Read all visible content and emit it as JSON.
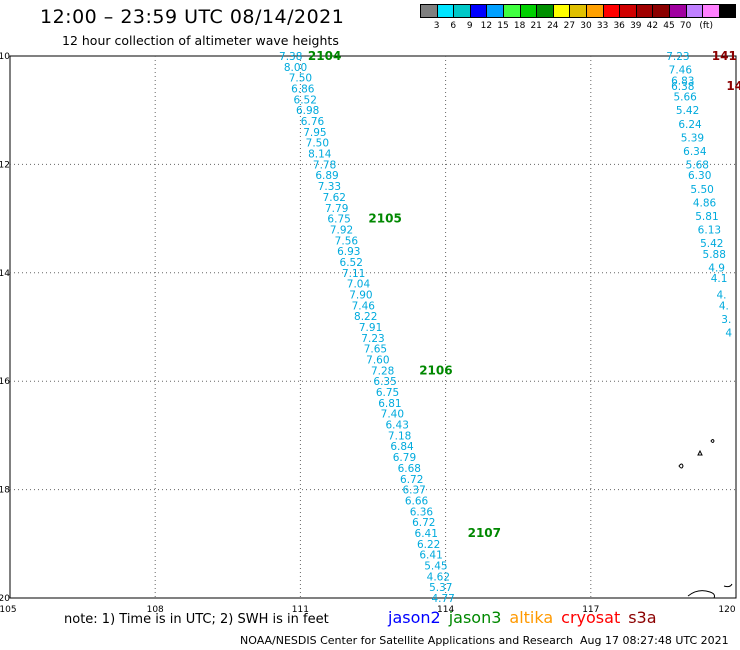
{
  "title": "12:00 – 23:59 UTC 08/14/2021",
  "subtitle": "12 hour collection of altimeter wave heights",
  "legend": {
    "colors": [
      "#7f7f7f",
      "#00e5ff",
      "#00c8c8",
      "#0000ff",
      "#00a0ff",
      "#40ff40",
      "#00d000",
      "#009000",
      "#ffff00",
      "#e0c000",
      "#ffa000",
      "#ff0000",
      "#d00000",
      "#a00000",
      "#8b0000",
      "#a000a0",
      "#c080ff",
      "#ff80ff",
      "#000000"
    ],
    "labels": [
      "3",
      "6",
      "9",
      "12",
      "15",
      "18",
      "21",
      "24",
      "27",
      "30",
      "33",
      "36",
      "39",
      "42",
      "45",
      "70",
      "(ft)"
    ]
  },
  "map": {
    "lon_range": [
      105,
      120
    ],
    "lat_range": [
      -20,
      -10
    ],
    "lon_ticks": [
      "105",
      "108",
      "111",
      "114",
      "117",
      "120"
    ],
    "lat_ticks": [
      "-10",
      "-12",
      "-14",
      "-16",
      "-18",
      "-20"
    ],
    "track_color": "#00aadd",
    "time_color": "#008800",
    "other_time_color": "#8b0000"
  },
  "track_main": [
    {
      "lon": 110.8,
      "lat": -10.0,
      "v": "7.38"
    },
    {
      "lon": 110.9,
      "lat": -10.2,
      "v": "8.00"
    },
    {
      "lon": 111.0,
      "lat": -10.4,
      "v": "7.50"
    },
    {
      "lon": 111.05,
      "lat": -10.6,
      "v": "6.86"
    },
    {
      "lon": 111.1,
      "lat": -10.8,
      "v": "6.52"
    },
    {
      "lon": 111.15,
      "lat": -11.0,
      "v": "6.98"
    },
    {
      "lon": 111.25,
      "lat": -11.2,
      "v": "6.76"
    },
    {
      "lon": 111.3,
      "lat": -11.4,
      "v": "7.95"
    },
    {
      "lon": 111.35,
      "lat": -11.6,
      "v": "7.50"
    },
    {
      "lon": 111.4,
      "lat": -11.8,
      "v": "8.14"
    },
    {
      "lon": 111.5,
      "lat": -12.0,
      "v": "7.78"
    },
    {
      "lon": 111.55,
      "lat": -12.2,
      "v": "6.89"
    },
    {
      "lon": 111.6,
      "lat": -12.4,
      "v": "7.33"
    },
    {
      "lon": 111.7,
      "lat": -12.6,
      "v": "7.62"
    },
    {
      "lon": 111.75,
      "lat": -12.8,
      "v": "7.79"
    },
    {
      "lon": 111.8,
      "lat": -13.0,
      "v": "6.75"
    },
    {
      "lon": 111.85,
      "lat": -13.2,
      "v": "7.92"
    },
    {
      "lon": 111.95,
      "lat": -13.4,
      "v": "7.56"
    },
    {
      "lon": 112.0,
      "lat": -13.6,
      "v": "6.93"
    },
    {
      "lon": 112.05,
      "lat": -13.8,
      "v": "6.52"
    },
    {
      "lon": 112.1,
      "lat": -14.0,
      "v": "7.11"
    },
    {
      "lon": 112.2,
      "lat": -14.2,
      "v": "7.04"
    },
    {
      "lon": 112.25,
      "lat": -14.4,
      "v": "7.90"
    },
    {
      "lon": 112.3,
      "lat": -14.6,
      "v": "7.46"
    },
    {
      "lon": 112.35,
      "lat": -14.8,
      "v": "8.22"
    },
    {
      "lon": 112.45,
      "lat": -15.0,
      "v": "7.91"
    },
    {
      "lon": 112.5,
      "lat": -15.2,
      "v": "7.23"
    },
    {
      "lon": 112.55,
      "lat": -15.4,
      "v": "7.65"
    },
    {
      "lon": 112.6,
      "lat": -15.6,
      "v": "7.60"
    },
    {
      "lon": 112.7,
      "lat": -15.8,
      "v": "7.28"
    },
    {
      "lon": 112.75,
      "lat": -16.0,
      "v": "6.35"
    },
    {
      "lon": 112.8,
      "lat": -16.2,
      "v": "6.75"
    },
    {
      "lon": 112.85,
      "lat": -16.4,
      "v": "6.81"
    },
    {
      "lon": 112.9,
      "lat": -16.6,
      "v": "7.40"
    },
    {
      "lon": 113.0,
      "lat": -16.8,
      "v": "6.43"
    },
    {
      "lon": 113.05,
      "lat": -17.0,
      "v": "7.18"
    },
    {
      "lon": 113.1,
      "lat": -17.2,
      "v": "6.84"
    },
    {
      "lon": 113.15,
      "lat": -17.4,
      "v": "6.79"
    },
    {
      "lon": 113.25,
      "lat": -17.6,
      "v": "6.68"
    },
    {
      "lon": 113.3,
      "lat": -17.8,
      "v": "6.72"
    },
    {
      "lon": 113.35,
      "lat": -18.0,
      "v": "6.37"
    },
    {
      "lon": 113.4,
      "lat": -18.2,
      "v": "6.66"
    },
    {
      "lon": 113.5,
      "lat": -18.4,
      "v": "6.36"
    },
    {
      "lon": 113.55,
      "lat": -18.6,
      "v": "6.72"
    },
    {
      "lon": 113.6,
      "lat": -18.8,
      "v": "6.41"
    },
    {
      "lon": 113.65,
      "lat": -19.0,
      "v": "6.22"
    },
    {
      "lon": 113.7,
      "lat": -19.2,
      "v": "6.41"
    },
    {
      "lon": 113.8,
      "lat": -19.4,
      "v": "5.45"
    },
    {
      "lon": 113.85,
      "lat": -19.6,
      "v": "4.62"
    },
    {
      "lon": 113.9,
      "lat": -19.8,
      "v": "5.37"
    },
    {
      "lon": 113.95,
      "lat": -20.0,
      "v": "4.77"
    }
  ],
  "time_labels_main": [
    {
      "lon": 111.5,
      "lat": -10.0,
      "t": "2104"
    },
    {
      "lon": 112.75,
      "lat": -13.0,
      "t": "2105"
    },
    {
      "lon": 113.8,
      "lat": -15.8,
      "t": "2106"
    },
    {
      "lon": 114.8,
      "lat": -18.8,
      "t": "2107"
    }
  ],
  "track_right": [
    {
      "lon": 118.8,
      "lat": -10.0,
      "v": "7.23"
    },
    {
      "lon": 118.85,
      "lat": -10.25,
      "v": "7.46"
    },
    {
      "lon": 118.9,
      "lat": -10.45,
      "v": "6.83"
    },
    {
      "lon": 118.9,
      "lat": -10.55,
      "v": "6.38"
    },
    {
      "lon": 118.95,
      "lat": -10.75,
      "v": "5.66"
    },
    {
      "lon": 119.0,
      "lat": -11.0,
      "v": "5.42"
    },
    {
      "lon": 119.05,
      "lat": -11.25,
      "v": "6.24"
    },
    {
      "lon": 119.1,
      "lat": -11.5,
      "v": "5.39"
    },
    {
      "lon": 119.15,
      "lat": -11.75,
      "v": "6.34"
    },
    {
      "lon": 119.2,
      "lat": -12.0,
      "v": "5.68"
    },
    {
      "lon": 119.25,
      "lat": -12.2,
      "v": "6.30"
    },
    {
      "lon": 119.3,
      "lat": -12.45,
      "v": "5.50"
    },
    {
      "lon": 119.35,
      "lat": -12.7,
      "v": "4.86"
    },
    {
      "lon": 119.4,
      "lat": -12.95,
      "v": "5.81"
    },
    {
      "lon": 119.45,
      "lat": -13.2,
      "v": "6.13"
    },
    {
      "lon": 119.5,
      "lat": -13.45,
      "v": "5.42"
    },
    {
      "lon": 119.55,
      "lat": -13.65,
      "v": "5.88"
    },
    {
      "lon": 119.6,
      "lat": -13.9,
      "v": "4.9"
    },
    {
      "lon": 119.65,
      "lat": -14.1,
      "v": "4.1"
    },
    {
      "lon": 119.7,
      "lat": -14.4,
      "v": "4."
    },
    {
      "lon": 119.75,
      "lat": -14.6,
      "v": "4."
    },
    {
      "lon": 119.8,
      "lat": -14.85,
      "v": "3."
    },
    {
      "lon": 119.85,
      "lat": -15.1,
      "v": "4"
    }
  ],
  "time_labels_right": [
    {
      "lon": 119.5,
      "lat": -10.0,
      "t": "141"
    },
    {
      "lon": 119.8,
      "lat": -10.55,
      "t": "14"
    }
  ],
  "note": "note: 1) Time is in UTC; 2) SWH is in feet",
  "missions": [
    {
      "name": "jason2",
      "color": "#0000ff"
    },
    {
      "name": "jason3",
      "color": "#008800"
    },
    {
      "name": "altika",
      "color": "#ff9900"
    },
    {
      "name": "cryosat",
      "color": "#ff0000"
    },
    {
      "name": "s3a",
      "color": "#8b0000"
    }
  ],
  "credit": "NOAA/NESDIS Center for Satellite Applications and Research",
  "credit_time": "Aug 17 08:27:48 UTC 2021"
}
